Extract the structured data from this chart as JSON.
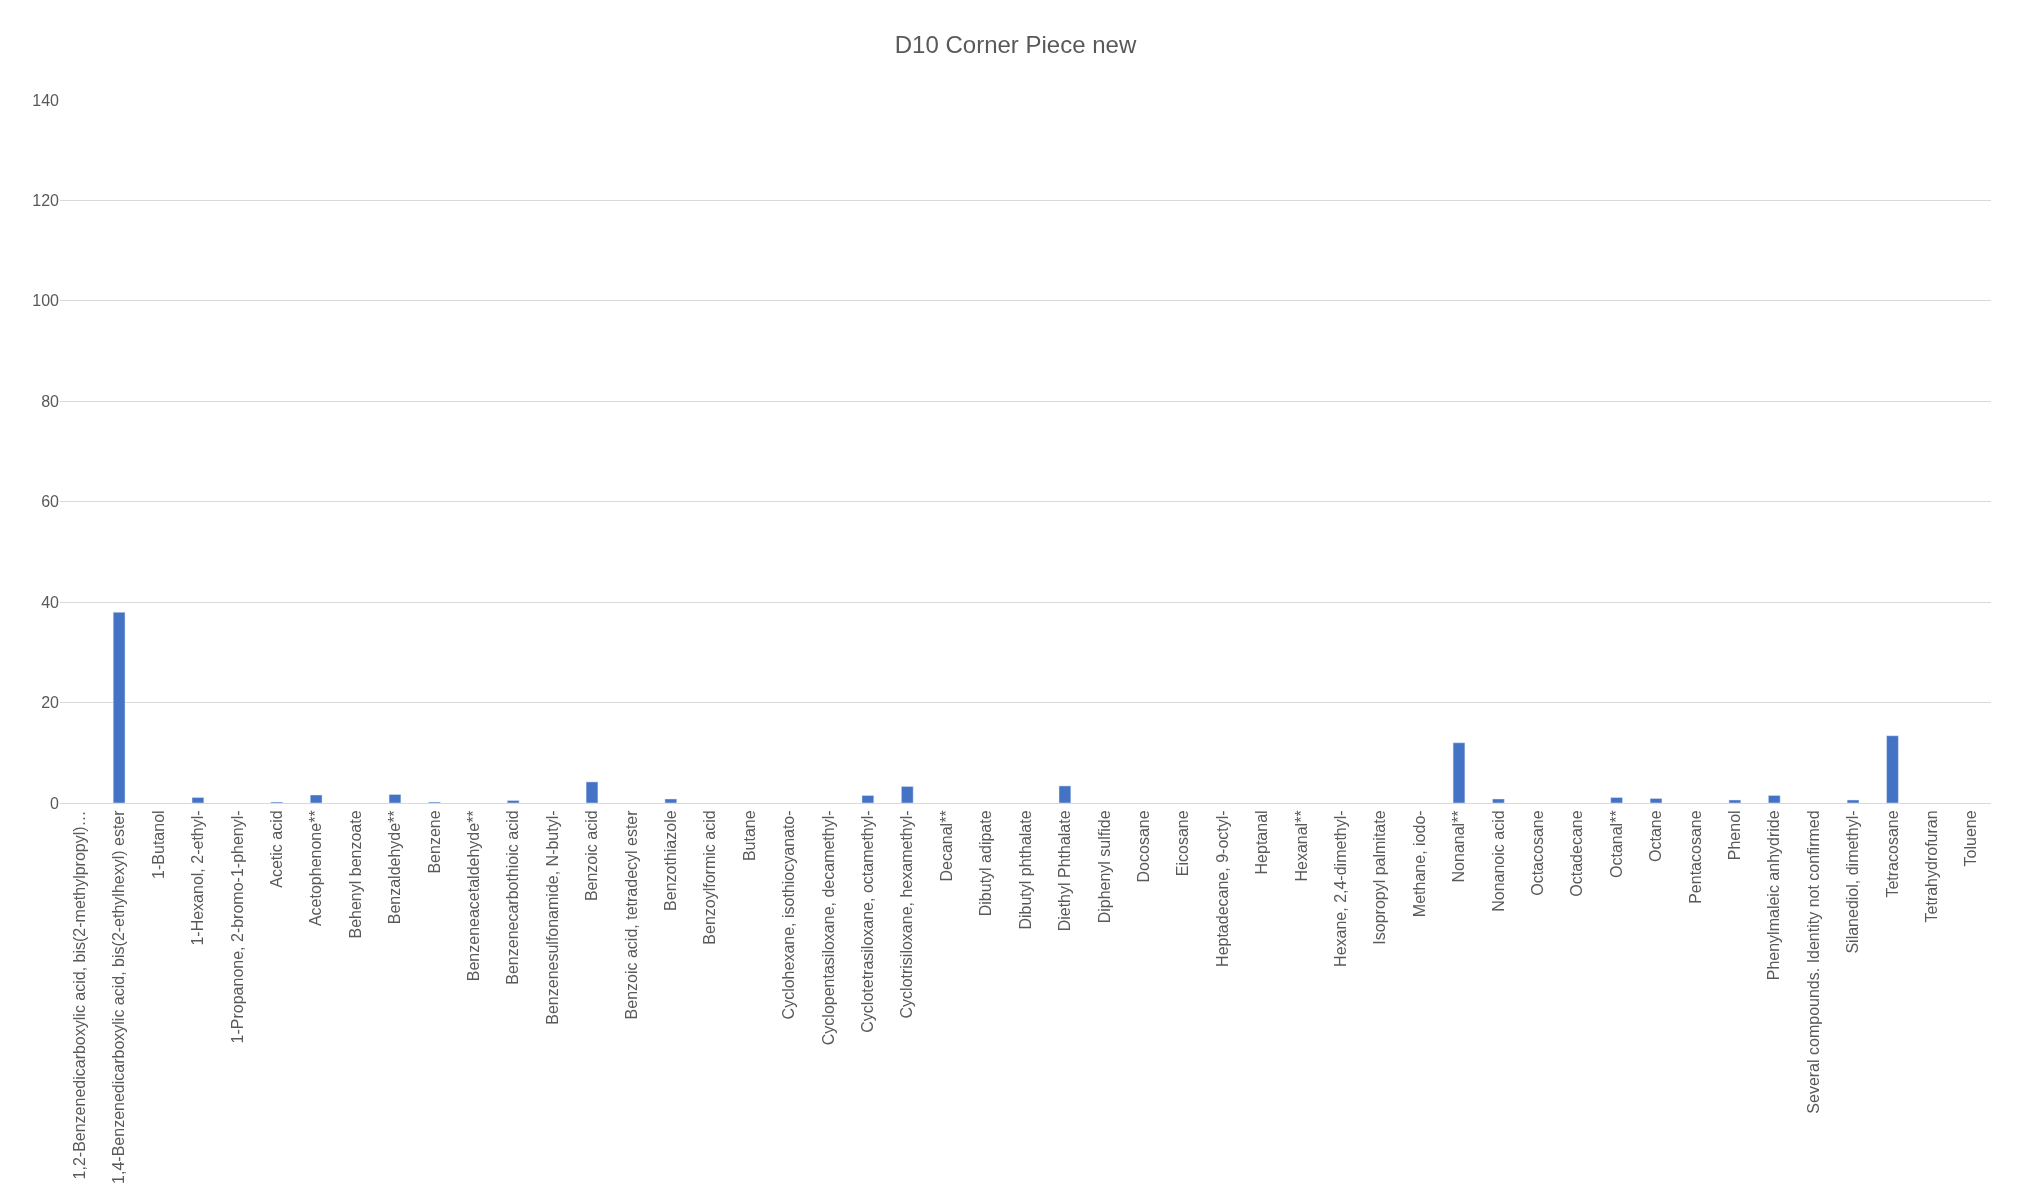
{
  "chart_data": {
    "type": "bar",
    "title": "D10 Corner Piece new",
    "categories": [
      "1,2-Benzenedicarboxylic acid, bis(2-methylpropyl)…",
      "1,4-Benzenedicarboxylic acid, bis(2-ethylhexyl) ester",
      "1-Butanol",
      "1-Hexanol, 2-ethyl-",
      "1-Propanone, 2-bromo-1-phenyl-",
      "Acetic acid",
      "Acetophenone**",
      "Behenyl benzoate",
      "Benzaldehyde**",
      "Benzene",
      "Benzeneacetaldehyde**",
      "Benzenecarbothioic acid",
      "Benzenesulfonamide, N-butyl-",
      "Benzoic acid",
      "Benzoic acid, tetradecyl ester",
      "Benzothiazole",
      "Benzoylformic acid",
      "Butane",
      "Cyclohexane, isothiocyanato-",
      "Cyclopentasiloxane, decamethyl-",
      "Cyclotetrasiloxane, octamethyl-",
      "Cyclotrisiloxane, hexamethyl-",
      "Decanal**",
      "Dibutyl adipate",
      "Dibutyl phthalate",
      "Diethyl Phthalate",
      "Diphenyl sulfide",
      "Docosane",
      "Eicosane",
      "Heptadecane, 9-octyl-",
      "Heptanal",
      "Hexanal**",
      "Hexane, 2,4-dimethyl-",
      "Isopropyl palmitate",
      "Methane, iodo-",
      "Nonanal**",
      "Nonanoic acid",
      "Octacosane",
      "Octadecane",
      "Octanal**",
      "Octane",
      "Pentacosane",
      "Phenol",
      "Phenylmaleic anhydride",
      "Several compounds. Identity not confirmed",
      "Silanediol, dimethyl-",
      "Tetracosane",
      "Tetrahydrofuran",
      "Toluene"
    ],
    "values": [
      null,
      38,
      null,
      1.1,
      null,
      0.2,
      1.6,
      null,
      1.7,
      0.2,
      null,
      0.5,
      null,
      4.2,
      null,
      0.8,
      null,
      null,
      null,
      null,
      1.5,
      3.3,
      null,
      null,
      null,
      3.4,
      null,
      null,
      null,
      null,
      null,
      null,
      null,
      null,
      null,
      12.0,
      0.8,
      null,
      null,
      1.1,
      0.9,
      null,
      0.6,
      1.5,
      null,
      0.6,
      13.4,
      null,
      null
    ],
    "color": "#4472c4",
    "ylim": [
      0,
      140
    ],
    "yticks": [
      0,
      20,
      40,
      60,
      80,
      100,
      120,
      140
    ],
    "grid": "y"
  }
}
